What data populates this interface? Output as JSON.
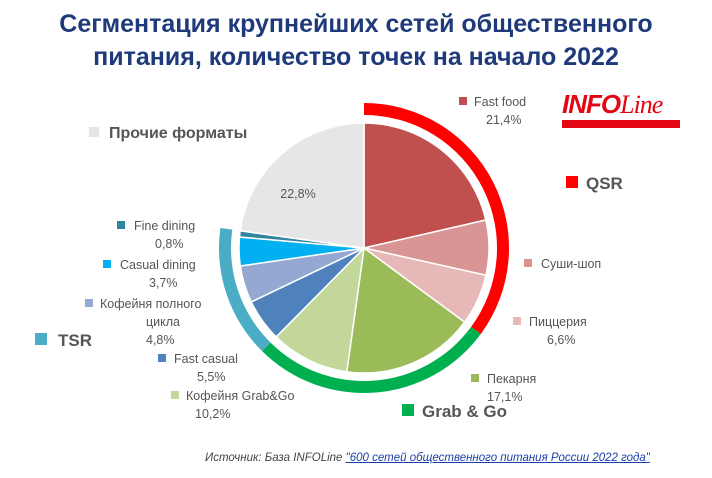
{
  "title_line1": "Сегментация крупнейших сетей общественного",
  "title_line2": "питания, количество точек на начало 2022",
  "logo_text_info": "INFO",
  "logo_text_line": "Line",
  "source_label": "Источник: База INFOLine ",
  "source_link": "\"600 сетей общественного питания России 2022 года\"",
  "chart_data": {
    "type": "pie",
    "title": "Сегментация крупнейших сетей общественного питания, количество точек на начало 2022",
    "unit": "%",
    "slices": [
      {
        "name": "Fast food",
        "value": 21.4,
        "value_label": "21,4%",
        "color": "#c0504d",
        "group": "QSR"
      },
      {
        "name": "Суши-шоп",
        "value": 7.1,
        "value_label": "",
        "color": "#d99594",
        "group": "QSR"
      },
      {
        "name": "Пиццерия",
        "value": 6.6,
        "value_label": "6,6%",
        "color": "#e6b8b7",
        "group": "QSR"
      },
      {
        "name": "Пекарня",
        "value": 17.1,
        "value_label": "17,1%",
        "color": "#9bbb59",
        "group": "Grab & Go"
      },
      {
        "name": "Кофейня Grab&Go",
        "value": 10.2,
        "value_label": "10,2%",
        "color": "#c4d79b",
        "group": "Grab & Go"
      },
      {
        "name": "Fast casual",
        "value": 5.5,
        "value_label": "5,5%",
        "color": "#4f81bd",
        "group": "TSR"
      },
      {
        "name": "Кофейня полного цикла",
        "value": 4.8,
        "value_label": "4,8%",
        "color": "#95a8d2",
        "group": "TSR"
      },
      {
        "name": "Casual dining",
        "value": 3.7,
        "value_label": "3,7%",
        "color": "#00b0f0",
        "group": "TSR"
      },
      {
        "name": "Fine dining",
        "value": 0.8,
        "value_label": "0,8%",
        "color": "#31859c",
        "group": "TSR"
      },
      {
        "name": "Прочие форматы",
        "value": 22.8,
        "value_label": "22,8%",
        "color": "#e6e6e6",
        "group": ""
      }
    ],
    "groups": [
      {
        "name": "QSR",
        "color": "#ff0000"
      },
      {
        "name": "Grab & Go",
        "color": "#00b050"
      },
      {
        "name": "TSR",
        "color": "#4bacc6"
      }
    ]
  }
}
